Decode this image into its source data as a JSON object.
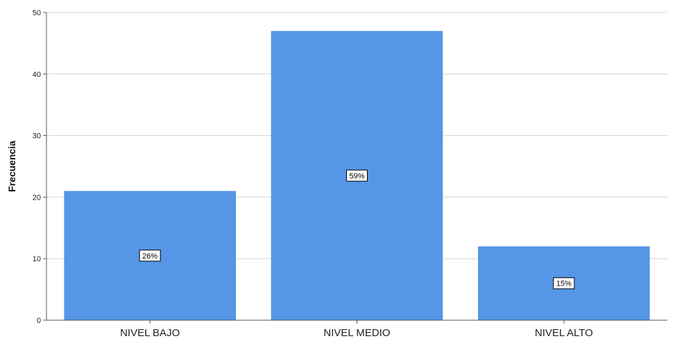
{
  "chart_data": {
    "type": "bar",
    "categories": [
      "NIVEL BAJO",
      "NIVEL MEDIO",
      "NIVEL ALTO"
    ],
    "values": [
      21,
      47,
      12
    ],
    "data_labels": [
      "26%",
      "59%",
      "15%"
    ],
    "title": "",
    "xlabel": "",
    "ylabel": "Frecuencia",
    "ylim": [
      0,
      50
    ],
    "yticks": [
      0,
      10,
      20,
      30,
      40,
      50
    ],
    "grid": true,
    "legend": "none",
    "colors": {
      "bar": "#5596E6",
      "grid": "#d4d4d4",
      "axis": "#555555"
    }
  }
}
